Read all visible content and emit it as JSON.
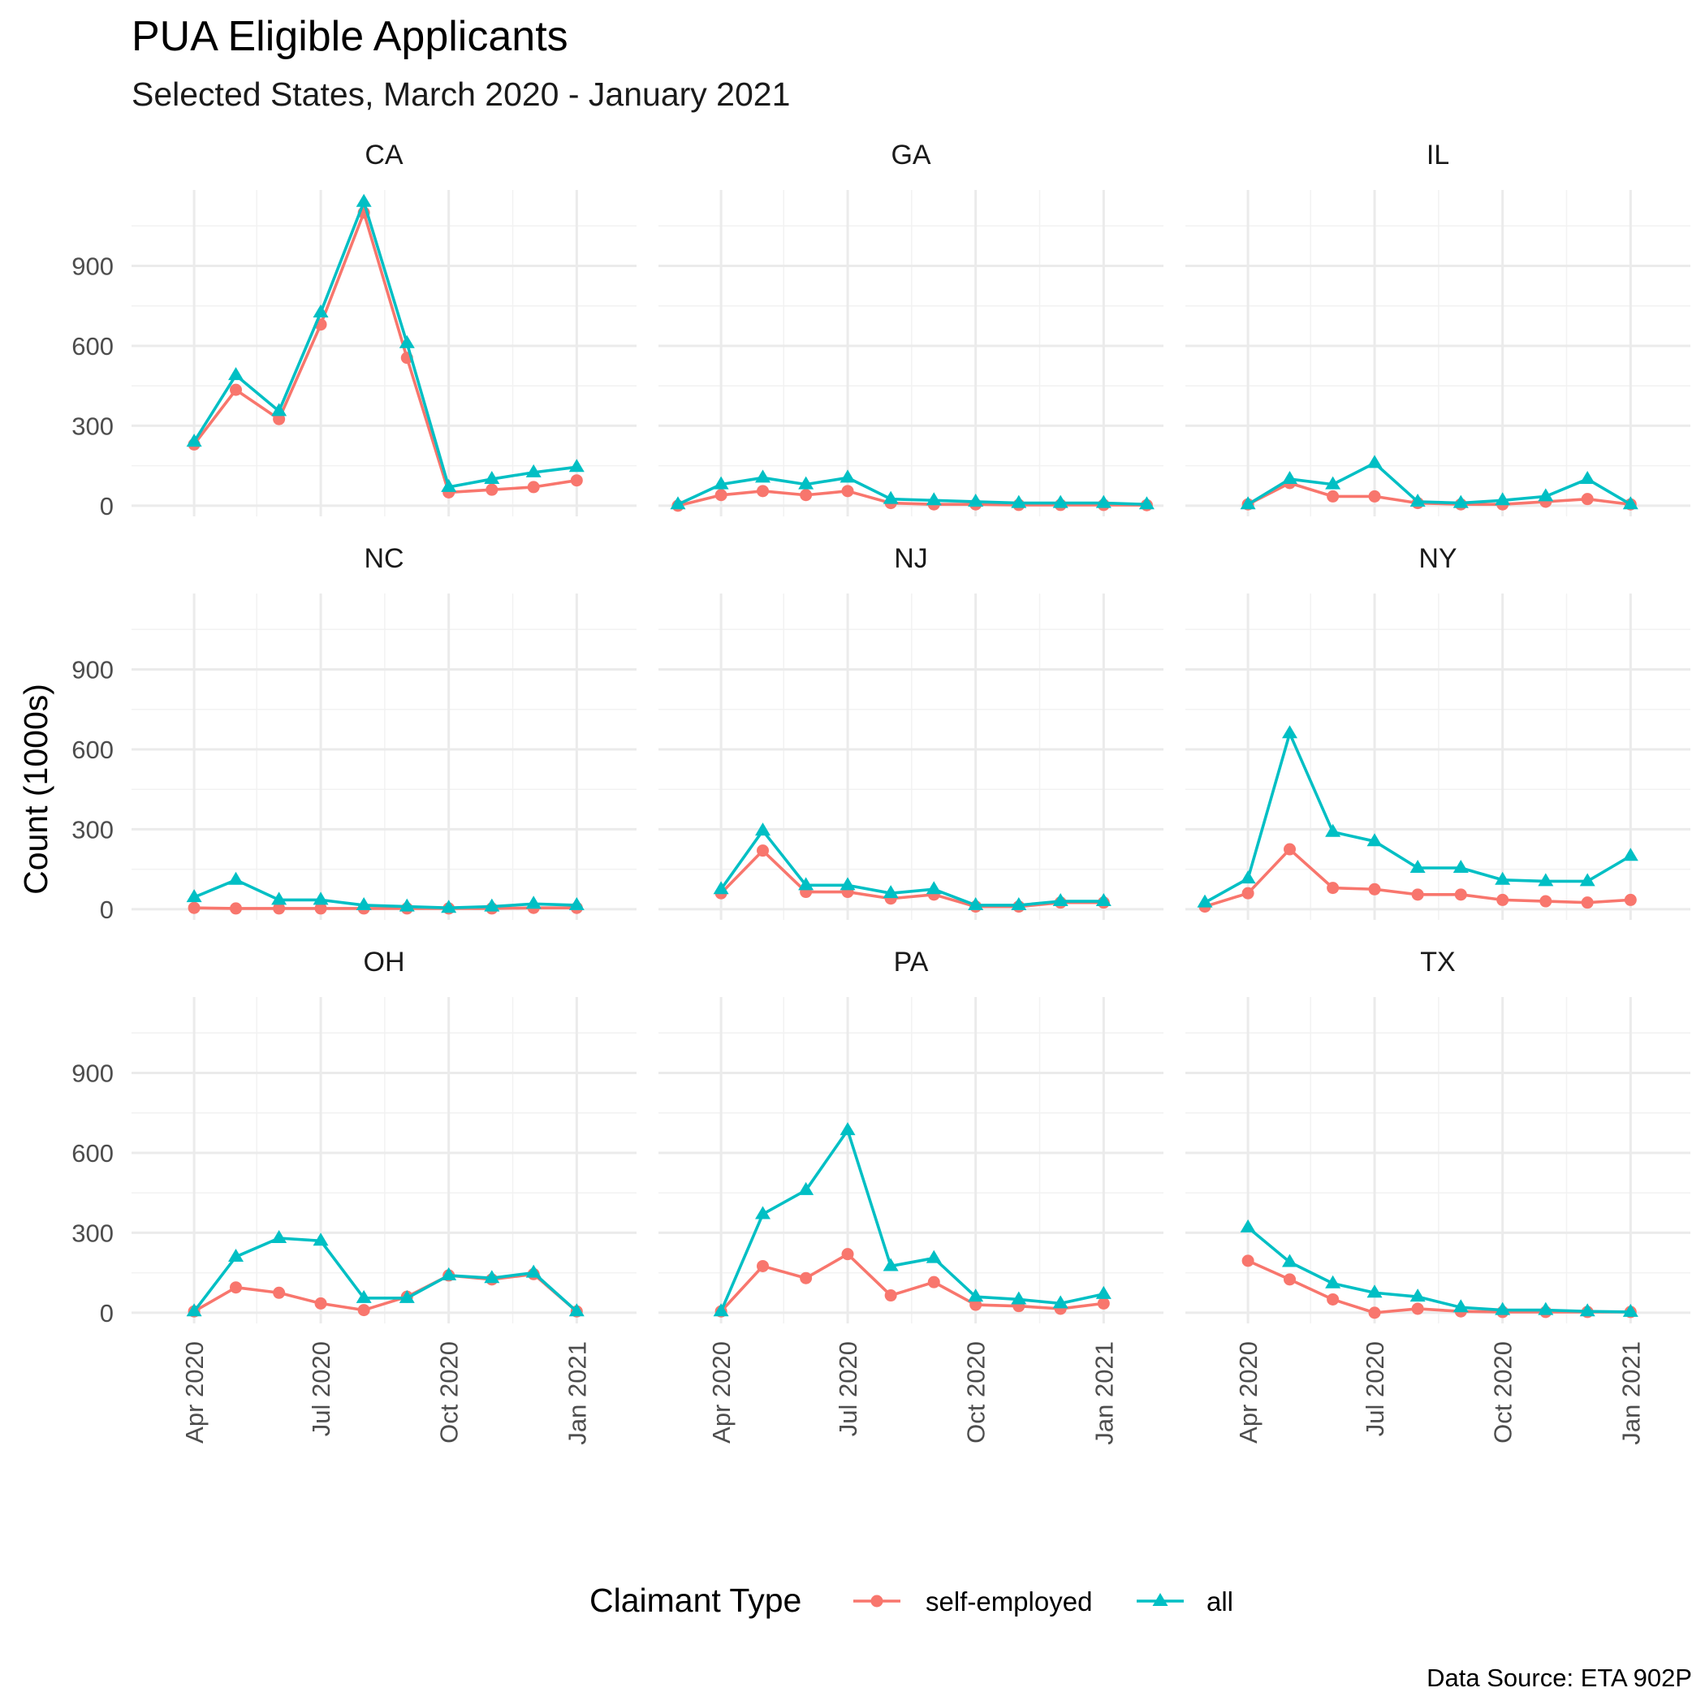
{
  "chart_data": {
    "type": "line",
    "title": "PUA Eligible Applicants",
    "subtitle": "Selected States, March 2020 - January 2021",
    "ylabel": "Count (1000s)",
    "xlabel": "",
    "caption": "Data Source: ETA 902P",
    "legend": {
      "title": "Claimant Type",
      "position": "bottom",
      "items": [
        {
          "label": "self-employed",
          "color": "#F8766D",
          "shape": "circle"
        },
        {
          "label": "all",
          "color": "#00BFC4",
          "shape": "triangle"
        }
      ]
    },
    "ylim": [
      -40,
      1185
    ],
    "y_ticks": [
      0,
      300,
      600,
      900
    ],
    "y_tick_labels": [
      "0",
      "300",
      "600",
      "900"
    ],
    "x_ticks": [
      "2020-04-01",
      "2020-07-01",
      "2020-10-01",
      "2021-01-01"
    ],
    "x_tick_labels": [
      "Apr 2020",
      "Jul 2020",
      "Oct 2020",
      "Jan 2021"
    ],
    "x_range": [
      "2020-02-16",
      "2021-02-13"
    ],
    "grid": true,
    "panels": [
      {
        "state": "CA",
        "dates": [
          "2020-04-01",
          "2020-05-01",
          "2020-06-01",
          "2020-07-01",
          "2020-08-01",
          "2020-09-01",
          "2020-10-01",
          "2020-11-01",
          "2020-12-01",
          "2021-01-01"
        ],
        "self_employed": [
          230,
          435,
          325,
          680,
          1100,
          555,
          50,
          60,
          70,
          95
        ],
        "all": [
          240,
          490,
          355,
          725,
          1140,
          610,
          70,
          100,
          125,
          145
        ]
      },
      {
        "state": "GA",
        "dates": [
          "2020-03-01",
          "2020-04-01",
          "2020-05-01",
          "2020-06-01",
          "2020-07-01",
          "2020-08-01",
          "2020-09-01",
          "2020-10-01",
          "2020-11-01",
          "2020-12-01",
          "2021-01-01",
          "2021-02-01"
        ],
        "self_employed": [
          0,
          40,
          55,
          40,
          55,
          10,
          5,
          5,
          3,
          3,
          3,
          2
        ],
        "all": [
          5,
          80,
          105,
          80,
          105,
          25,
          20,
          15,
          10,
          10,
          10,
          5
        ]
      },
      {
        "state": "IL",
        "dates": [
          "2020-04-01",
          "2020-05-01",
          "2020-06-01",
          "2020-07-01",
          "2020-08-01",
          "2020-09-01",
          "2020-10-01",
          "2020-11-01",
          "2020-12-01",
          "2021-01-01"
        ],
        "self_employed": [
          5,
          85,
          35,
          35,
          10,
          5,
          5,
          15,
          25,
          5
        ],
        "all": [
          5,
          100,
          80,
          160,
          15,
          10,
          20,
          35,
          100,
          5
        ]
      },
      {
        "state": "NC",
        "dates": [
          "2020-04-01",
          "2020-05-01",
          "2020-06-01",
          "2020-07-01",
          "2020-08-01",
          "2020-09-01",
          "2020-10-01",
          "2020-11-01",
          "2020-12-01",
          "2021-01-01"
        ],
        "self_employed": [
          5,
          3,
          3,
          3,
          3,
          3,
          3,
          3,
          5,
          5
        ],
        "all": [
          45,
          110,
          35,
          35,
          15,
          10,
          5,
          10,
          20,
          15
        ]
      },
      {
        "state": "NJ",
        "dates": [
          "2020-04-01",
          "2020-05-01",
          "2020-06-01",
          "2020-07-01",
          "2020-08-01",
          "2020-09-01",
          "2020-10-01",
          "2020-11-01",
          "2020-12-01",
          "2021-01-01"
        ],
        "self_employed": [
          60,
          220,
          65,
          65,
          40,
          55,
          10,
          10,
          25,
          25
        ],
        "all": [
          75,
          295,
          90,
          90,
          60,
          75,
          15,
          15,
          30,
          30
        ]
      },
      {
        "state": "NY",
        "dates": [
          "2020-03-01",
          "2020-04-01",
          "2020-05-01",
          "2020-06-01",
          "2020-07-01",
          "2020-08-01",
          "2020-09-01",
          "2020-10-01",
          "2020-11-01",
          "2020-12-01",
          "2021-01-01"
        ],
        "self_employed": [
          10,
          60,
          225,
          80,
          75,
          55,
          55,
          35,
          30,
          25,
          35
        ],
        "all": [
          25,
          115,
          660,
          290,
          255,
          155,
          155,
          110,
          105,
          105,
          200
        ]
      },
      {
        "state": "OH",
        "dates": [
          "2020-04-01",
          "2020-05-01",
          "2020-06-01",
          "2020-07-01",
          "2020-08-01",
          "2020-09-01",
          "2020-10-01",
          "2020-11-01",
          "2020-12-01",
          "2021-01-01"
        ],
        "self_employed": [
          5,
          95,
          75,
          35,
          10,
          60,
          140,
          125,
          145,
          5
        ],
        "all": [
          5,
          210,
          280,
          270,
          55,
          55,
          140,
          130,
          150,
          5
        ]
      },
      {
        "state": "PA",
        "dates": [
          "2020-04-01",
          "2020-05-01",
          "2020-06-01",
          "2020-07-01",
          "2020-08-01",
          "2020-09-01",
          "2020-10-01",
          "2020-11-01",
          "2020-12-01",
          "2021-01-01"
        ],
        "self_employed": [
          5,
          175,
          130,
          220,
          65,
          115,
          30,
          25,
          15,
          35
        ],
        "all": [
          5,
          370,
          460,
          685,
          175,
          205,
          60,
          50,
          35,
          70
        ]
      },
      {
        "state": "TX",
        "dates": [
          "2020-04-01",
          "2020-05-01",
          "2020-06-01",
          "2020-07-01",
          "2020-08-01",
          "2020-09-01",
          "2020-10-01",
          "2020-11-01",
          "2020-12-01",
          "2021-01-01"
        ],
        "self_employed": [
          195,
          125,
          50,
          0,
          15,
          5,
          3,
          3,
          3,
          3
        ],
        "all": [
          320,
          190,
          110,
          75,
          60,
          20,
          10,
          10,
          5,
          3
        ]
      }
    ]
  }
}
